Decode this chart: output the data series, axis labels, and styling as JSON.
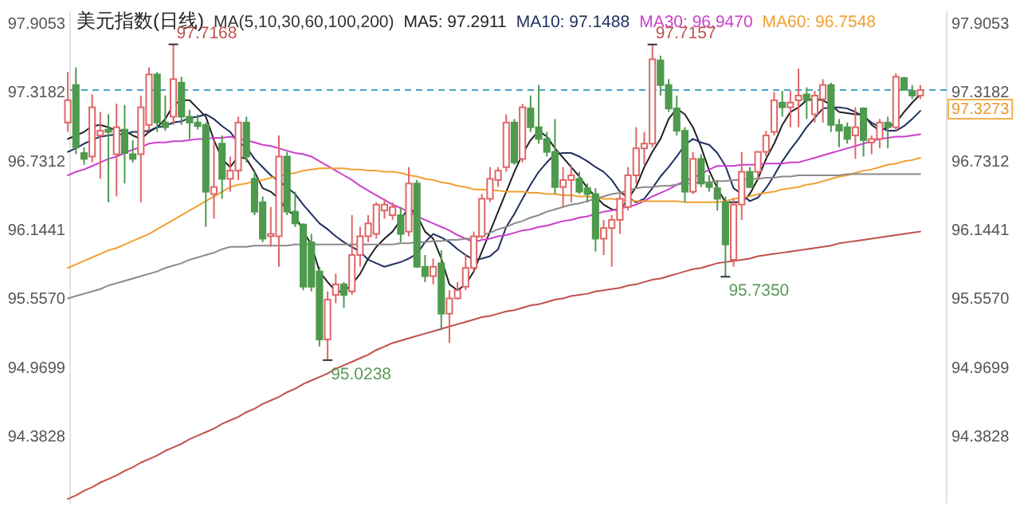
{
  "chart_data": {
    "type": "candlestick",
    "title": "美元指数(日线)",
    "annotations": [
      "MA(5,10,30,60,100,200)",
      "97.7168",
      "95.0238",
      "97.7157",
      "95.7350"
    ],
    "categories": [
      null,
      null,
      null,
      null,
      null,
      null,
      null,
      null,
      null,
      null,
      null,
      null,
      null,
      null,
      null,
      null,
      null,
      null,
      null,
      null,
      null,
      null,
      null,
      null,
      null,
      null,
      null,
      null,
      null,
      null,
      null,
      null,
      null,
      null,
      null,
      null,
      null,
      null,
      null,
      null,
      null,
      null,
      null,
      null,
      null,
      null,
      null,
      null,
      null,
      null,
      null,
      null,
      null,
      null,
      null,
      null,
      null,
      null,
      null,
      null,
      null,
      null,
      null,
      null,
      null,
      null,
      null,
      null,
      null,
      null,
      null,
      null,
      null,
      null,
      null,
      null,
      null,
      null,
      null,
      null,
      null,
      null,
      null,
      null,
      null,
      null,
      null,
      null,
      null,
      null,
      null,
      null,
      null,
      null,
      null,
      null,
      null,
      null,
      null,
      null,
      null,
      null,
      null,
      null,
      null,
      null
    ],
    "ohlc": [
      [
        97.05,
        97.48,
        96.97,
        97.24
      ],
      [
        97.37,
        97.52,
        96.78,
        96.84
      ],
      [
        96.79,
        96.84,
        96.69,
        96.74
      ],
      [
        96.76,
        97.29,
        96.71,
        97.18
      ],
      [
        96.94,
        97.14,
        96.57,
        96.98
      ],
      [
        96.99,
        97.12,
        96.37,
        96.97
      ],
      [
        96.78,
        97.21,
        96.42,
        97.01
      ],
      [
        96.99,
        97.2,
        96.53,
        96.79
      ],
      [
        96.78,
        96.9,
        96.71,
        96.74
      ],
      [
        96.78,
        97.28,
        96.37,
        97.18
      ],
      [
        97.03,
        97.52,
        96.98,
        97.46
      ],
      [
        97.46,
        97.48,
        96.97,
        97.05
      ],
      [
        97.05,
        97.28,
        96.98,
        97.01
      ],
      [
        97.1,
        97.7168,
        97.03,
        97.42
      ],
      [
        97.39,
        97.44,
        97.03,
        97.1
      ],
      [
        97.1,
        97.16,
        96.91,
        97.05
      ],
      [
        97.05,
        97.12,
        96.99,
        97.02
      ],
      [
        97.03,
        97.05,
        96.16,
        96.46
      ],
      [
        96.44,
        96.9,
        96.23,
        96.5
      ],
      [
        96.87,
        96.94,
        96.4,
        96.57
      ],
      [
        96.57,
        96.76,
        96.46,
        96.64
      ],
      [
        96.64,
        97.1,
        96.56,
        97.05
      ],
      [
        97.05,
        97.1,
        96.71,
        96.76
      ],
      [
        96.57,
        96.63,
        96.26,
        96.29
      ],
      [
        96.37,
        96.42,
        96.03,
        96.06
      ],
      [
        96.08,
        96.33,
        95.99,
        96.1
      ],
      [
        96.08,
        96.94,
        95.82,
        96.76
      ],
      [
        96.76,
        96.8,
        96.26,
        96.29
      ],
      [
        96.29,
        96.46,
        96.16,
        96.19
      ],
      [
        96.18,
        96.19,
        95.62,
        95.65
      ],
      [
        96.03,
        96.1,
        95.61,
        95.65
      ],
      [
        95.78,
        95.82,
        95.14,
        95.2
      ],
      [
        95.2,
        95.61,
        95.0238,
        95.54
      ],
      [
        95.58,
        95.76,
        95.51,
        95.67
      ],
      [
        95.67,
        95.69,
        95.47,
        95.58
      ],
      [
        95.61,
        96.26,
        95.58,
        95.92
      ],
      [
        95.92,
        96.16,
        95.82,
        96.08
      ],
      [
        96.08,
        96.26,
        96.03,
        96.19
      ],
      [
        96.1,
        96.37,
        96.06,
        96.35
      ],
      [
        96.3,
        96.4,
        96.23,
        96.35
      ],
      [
        96.26,
        96.37,
        96.22,
        96.33
      ],
      [
        96.26,
        96.33,
        96.03,
        96.1
      ],
      [
        96.12,
        96.67,
        96.08,
        96.53
      ],
      [
        96.53,
        96.56,
        95.81,
        95.82
      ],
      [
        95.82,
        95.92,
        95.69,
        95.74
      ],
      [
        95.74,
        95.89,
        95.67,
        95.82
      ],
      [
        95.85,
        95.96,
        95.28,
        95.42
      ],
      [
        95.42,
        95.62,
        95.17,
        95.55
      ],
      [
        95.55,
        95.69,
        95.54,
        95.62
      ],
      [
        95.65,
        95.92,
        95.62,
        95.81
      ],
      [
        95.81,
        96.12,
        95.78,
        96.08
      ],
      [
        96.08,
        96.44,
        96.06,
        96.4
      ],
      [
        96.4,
        96.67,
        96.37,
        96.57
      ],
      [
        96.56,
        96.67,
        96.5,
        96.64
      ],
      [
        96.67,
        97.12,
        96.63,
        97.05
      ],
      [
        97.05,
        97.08,
        96.69,
        96.71
      ],
      [
        96.74,
        97.21,
        96.71,
        97.18
      ],
      [
        97.17,
        97.28,
        96.97,
        97.01
      ],
      [
        97.01,
        97.37,
        96.87,
        96.91
      ],
      [
        96.91,
        96.97,
        96.76,
        96.8
      ],
      [
        96.8,
        97.08,
        96.44,
        96.5
      ],
      [
        96.5,
        96.67,
        96.33,
        96.56
      ],
      [
        96.56,
        96.69,
        96.37,
        96.6
      ],
      [
        96.57,
        96.63,
        96.44,
        96.46
      ],
      [
        96.49,
        96.53,
        96.37,
        96.44
      ],
      [
        96.44,
        96.49,
        95.95,
        96.06
      ],
      [
        96.06,
        96.22,
        95.92,
        96.15
      ],
      [
        96.15,
        96.26,
        95.82,
        96.22
      ],
      [
        96.22,
        96.46,
        96.1,
        96.4
      ],
      [
        96.33,
        96.67,
        96.3,
        96.6
      ],
      [
        96.6,
        97.01,
        96.53,
        96.83
      ],
      [
        96.83,
        96.97,
        96.69,
        96.87
      ],
      [
        96.87,
        97.7157,
        96.84,
        97.59
      ],
      [
        97.58,
        97.62,
        97.28,
        97.37
      ],
      [
        97.37,
        97.42,
        97.14,
        97.17
      ],
      [
        97.17,
        97.28,
        96.94,
        96.98
      ],
      [
        96.98,
        97.01,
        96.37,
        96.46
      ],
      [
        96.46,
        96.8,
        96.44,
        96.74
      ],
      [
        96.74,
        96.78,
        96.5,
        96.53
      ],
      [
        96.53,
        96.6,
        96.46,
        96.5
      ],
      [
        96.49,
        96.56,
        96.3,
        96.4
      ],
      [
        96.37,
        96.42,
        95.735,
        96.01
      ],
      [
        95.88,
        96.4,
        95.82,
        96.35
      ],
      [
        96.35,
        96.8,
        96.22,
        96.63
      ],
      [
        96.63,
        96.67,
        96.49,
        96.5
      ],
      [
        96.63,
        96.8,
        96.56,
        96.8
      ],
      [
        96.8,
        96.98,
        96.76,
        96.94
      ],
      [
        96.97,
        97.31,
        96.94,
        97.24
      ],
      [
        97.22,
        97.32,
        97.1,
        97.18
      ],
      [
        97.18,
        97.32,
        97.01,
        97.22
      ],
      [
        97.24,
        97.51,
        97.01,
        97.28
      ],
      [
        97.29,
        97.35,
        97.08,
        97.24
      ],
      [
        97.12,
        97.32,
        97.05,
        97.28
      ],
      [
        97.25,
        97.42,
        97.05,
        97.37
      ],
      [
        97.37,
        97.39,
        96.97,
        97.03
      ],
      [
        97.03,
        97.08,
        96.84,
        96.98
      ],
      [
        97.01,
        97.05,
        96.87,
        96.91
      ],
      [
        96.94,
        97.18,
        96.74,
        97.01
      ],
      [
        97.17,
        97.18,
        96.76,
        96.9
      ],
      [
        96.88,
        96.94,
        96.78,
        96.91
      ],
      [
        96.91,
        97.08,
        96.83,
        97.05
      ],
      [
        97.05,
        97.1,
        96.83,
        97.01
      ],
      [
        97.01,
        97.47,
        96.98,
        97.44
      ],
      [
        97.43,
        97.44,
        97.32,
        97.33
      ],
      [
        97.32,
        97.37,
        97.25,
        97.28
      ],
      [
        97.28,
        97.37,
        97.25,
        97.3273
      ]
    ],
    "colors": [
      "#e06666",
      "#4e9a4e",
      "#4e9a4e",
      "#e06666",
      "#e06666",
      "#4e9a4e",
      "#e06666",
      "#4e9a4e",
      "#4e9a4e",
      "#e06666",
      "#e06666",
      "#4e9a4e",
      "#4e9a4e",
      "#e06666",
      "#4e9a4e",
      "#4e9a4e",
      "#4e9a4e",
      "#4e9a4e",
      "#e06666",
      "#4e9a4e",
      "#e06666",
      "#e06666",
      "#4e9a4e",
      "#4e9a4e",
      "#4e9a4e",
      "#e06666",
      "#e06666",
      "#4e9a4e",
      "#4e9a4e",
      "#4e9a4e",
      "#4e9a4e",
      "#4e9a4e",
      "#e06666",
      "#e06666",
      "#4e9a4e",
      "#e06666",
      "#e06666",
      "#e06666",
      "#e06666",
      "#e06666",
      "#e06666",
      "#4e9a4e",
      "#e06666",
      "#4e9a4e",
      "#4e9a4e",
      "#e06666",
      "#4e9a4e",
      "#e06666",
      "#e06666",
      "#e06666",
      "#e06666",
      "#e06666",
      "#e06666",
      "#e06666",
      "#e06666",
      "#4e9a4e",
      "#e06666",
      "#4e9a4e",
      "#4e9a4e",
      "#4e9a4e",
      "#4e9a4e",
      "#e06666",
      "#e06666",
      "#4e9a4e",
      "#4e9a4e",
      "#4e9a4e",
      "#e06666",
      "#e06666",
      "#e06666",
      "#e06666",
      "#e06666",
      "#e06666",
      "#e06666",
      "#4e9a4e",
      "#4e9a4e",
      "#4e9a4e",
      "#4e9a4e",
      "#e06666",
      "#4e9a4e",
      "#4e9a4e",
      "#4e9a4e",
      "#4e9a4e",
      "#e06666",
      "#e06666",
      "#4e9a4e",
      "#e06666",
      "#e06666",
      "#e06666",
      "#4e9a4e",
      "#e06666",
      "#e06666",
      "#4e9a4e",
      "#e06666",
      "#e06666",
      "#4e9a4e",
      "#4e9a4e",
      "#4e9a4e",
      "#e06666",
      "#4e9a4e",
      "#e06666",
      "#e06666",
      "#4e9a4e",
      "#e06666",
      "#4e9a4e",
      "#4e9a4e",
      "#e06666"
    ],
    "series": [
      {
        "type": "line",
        "name": "MA5: 97.2911",
        "color": "#222222",
        "values": [
          96.91,
          96.94,
          96.97,
          97.02,
          97.03,
          97.01,
          96.98,
          96.98,
          96.94,
          96.91,
          96.97,
          97.01,
          97.08,
          97.2,
          97.24,
          97.24,
          97.17,
          97.1,
          96.9,
          96.74,
          96.67,
          96.76,
          96.74,
          96.63,
          96.49,
          96.46,
          96.4,
          96.3,
          96.26,
          96.12,
          96.01,
          95.78,
          95.69,
          95.61,
          95.61,
          95.67,
          95.76,
          95.89,
          95.99,
          96.06,
          96.12,
          96.22,
          96.33,
          96.26,
          96.12,
          96.06,
          95.89,
          95.67,
          95.62,
          95.67,
          95.78,
          95.95,
          96.12,
          96.29,
          96.46,
          96.63,
          96.78,
          96.9,
          96.98,
          96.93,
          96.83,
          96.75,
          96.67,
          96.59,
          96.49,
          96.42,
          96.35,
          96.31,
          96.3,
          96.4,
          96.5,
          96.67,
          96.8,
          96.91,
          97.08,
          97.17,
          97.12,
          97.01,
          96.84,
          96.64,
          96.49,
          96.37,
          96.37,
          96.37,
          96.44,
          96.57,
          96.74,
          96.87,
          97.03,
          97.14,
          97.18,
          97.24,
          97.25,
          97.24,
          97.2,
          97.14,
          97.13,
          97.12,
          97.12,
          97.03,
          96.98,
          97.01,
          97.05,
          97.14,
          97.22,
          97.29
        ]
      },
      {
        "type": "line",
        "name": "MA10: 97.1488",
        "color": "#1f3060",
        "values": [
          96.8,
          96.83,
          96.87,
          96.9,
          96.93,
          96.94,
          96.95,
          96.95,
          96.97,
          96.97,
          96.98,
          97.01,
          97.02,
          97.05,
          97.06,
          97.09,
          97.1,
          97.12,
          97.08,
          97.02,
          96.97,
          96.88,
          96.84,
          96.74,
          96.67,
          96.6,
          96.55,
          96.5,
          96.44,
          96.35,
          96.27,
          96.19,
          96.14,
          96.08,
          96.03,
          95.99,
          95.95,
          95.88,
          95.85,
          95.82,
          95.84,
          95.86,
          95.89,
          95.93,
          96.03,
          96.1,
          96.07,
          96.03,
          95.97,
          95.92,
          95.88,
          95.89,
          95.91,
          95.97,
          96.16,
          96.27,
          96.4,
          96.52,
          96.63,
          96.71,
          96.78,
          96.79,
          96.79,
          96.76,
          96.72,
          96.67,
          96.63,
          96.56,
          96.46,
          96.41,
          96.37,
          96.4,
          96.49,
          96.59,
          96.67,
          96.76,
          96.86,
          96.91,
          96.88,
          96.86,
          96.79,
          96.68,
          96.49,
          96.44,
          96.38,
          96.41,
          96.49,
          96.6,
          96.72,
          96.82,
          96.91,
          97.01,
          97.09,
          97.17,
          97.18,
          97.18,
          97.17,
          97.14,
          97.1,
          97.05,
          97.01,
          96.98,
          96.98,
          97.02,
          97.08,
          97.15
        ]
      },
      {
        "type": "line",
        "name": "MA30: 96.9470",
        "color": "#cc3fcc",
        "values": [
          96.6,
          96.63,
          96.65,
          96.68,
          96.71,
          96.74,
          96.76,
          96.79,
          96.82,
          96.84,
          96.87,
          96.88,
          96.88,
          96.89,
          96.89,
          96.9,
          96.91,
          96.91,
          96.92,
          96.92,
          96.93,
          96.91,
          96.9,
          96.88,
          96.86,
          96.85,
          96.83,
          96.81,
          96.79,
          96.78,
          96.76,
          96.72,
          96.68,
          96.64,
          96.6,
          96.56,
          96.51,
          96.47,
          96.43,
          96.39,
          96.35,
          96.32,
          96.29,
          96.25,
          96.22,
          96.19,
          96.16,
          96.13,
          96.09,
          96.06,
          96.03,
          96.05,
          96.06,
          96.08,
          96.09,
          96.11,
          96.13,
          96.14,
          96.16,
          96.17,
          96.19,
          96.21,
          96.22,
          96.24,
          96.25,
          96.27,
          96.29,
          96.3,
          96.32,
          96.33,
          96.35,
          96.38,
          96.42,
          96.45,
          96.48,
          96.52,
          96.55,
          96.58,
          96.61,
          96.65,
          96.68,
          96.68,
          96.68,
          96.69,
          96.69,
          96.69,
          96.7,
          96.7,
          96.7,
          96.71,
          96.71,
          96.73,
          96.75,
          96.77,
          96.79,
          96.81,
          96.83,
          96.85,
          96.87,
          96.89,
          96.91,
          96.92,
          96.93,
          96.93,
          96.94,
          96.95
        ]
      },
      {
        "type": "line",
        "name": "MA60: 96.7548",
        "color": "#f0a030",
        "values": [
          95.81,
          95.84,
          95.87,
          95.9,
          95.93,
          95.96,
          95.98,
          96.01,
          96.04,
          96.07,
          96.1,
          96.14,
          96.18,
          96.22,
          96.26,
          96.3,
          96.34,
          96.38,
          96.42,
          96.46,
          96.5,
          96.52,
          96.53,
          96.55,
          96.56,
          96.58,
          96.59,
          96.61,
          96.62,
          96.64,
          96.65,
          96.66,
          96.66,
          96.66,
          96.66,
          96.65,
          96.65,
          96.64,
          96.64,
          96.63,
          96.63,
          96.62,
          96.6,
          96.59,
          96.57,
          96.56,
          96.54,
          96.53,
          96.51,
          96.5,
          96.48,
          96.48,
          96.47,
          96.47,
          96.46,
          96.46,
          96.46,
          96.45,
          96.45,
          96.44,
          96.44,
          96.43,
          96.43,
          96.42,
          96.42,
          96.41,
          96.4,
          96.4,
          96.39,
          96.39,
          96.38,
          96.38,
          96.38,
          96.38,
          96.38,
          96.38,
          96.37,
          96.37,
          96.37,
          96.37,
          96.37,
          96.38,
          96.4,
          96.41,
          96.42,
          96.44,
          96.45,
          96.46,
          96.48,
          96.49,
          96.5,
          96.52,
          96.53,
          96.55,
          96.57,
          96.59,
          96.6,
          96.62,
          96.64,
          96.65,
          96.67,
          96.69,
          96.7,
          96.72,
          96.73,
          96.75
        ]
      },
      {
        "type": "line",
        "color": "#8a8a8a",
        "values": [
          95.55,
          95.57,
          95.59,
          95.61,
          95.63,
          95.66,
          95.68,
          95.7,
          95.72,
          95.74,
          95.76,
          95.78,
          95.81,
          95.83,
          95.85,
          95.88,
          95.9,
          95.92,
          95.94,
          95.97,
          95.99,
          95.99,
          95.99,
          96.0,
          96.0,
          96.0,
          96.0,
          96.0,
          96.01,
          96.01,
          96.01,
          96.01,
          96.01,
          96.01,
          96.01,
          96.01,
          96.01,
          96.01,
          96.01,
          96.01,
          96.01,
          96.02,
          96.02,
          96.03,
          96.03,
          96.04,
          96.04,
          96.05,
          96.05,
          96.06,
          96.06,
          96.09,
          96.11,
          96.14,
          96.16,
          96.19,
          96.21,
          96.24,
          96.26,
          96.29,
          96.31,
          96.33,
          96.35,
          96.36,
          96.38,
          96.4,
          96.42,
          96.44,
          96.45,
          96.47,
          96.49,
          96.5,
          96.5,
          96.51,
          96.51,
          96.52,
          96.53,
          96.53,
          96.54,
          96.54,
          96.55,
          96.55,
          96.56,
          96.56,
          96.57,
          96.57,
          96.58,
          96.58,
          96.59,
          96.59,
          96.6,
          96.6,
          96.6,
          96.6,
          96.6,
          96.6,
          96.61,
          96.61,
          96.61,
          96.61,
          96.61,
          96.61,
          96.61,
          96.61,
          96.61,
          96.61
        ]
      },
      {
        "type": "line",
        "color": "#c0504d",
        "values": [
          93.84,
          93.87,
          93.91,
          93.94,
          93.98,
          94.01,
          94.04,
          94.08,
          94.11,
          94.15,
          94.18,
          94.21,
          94.25,
          94.28,
          94.31,
          94.35,
          94.38,
          94.41,
          94.44,
          94.48,
          94.51,
          94.54,
          94.58,
          94.61,
          94.65,
          94.68,
          94.71,
          94.75,
          94.78,
          94.82,
          94.85,
          94.88,
          94.91,
          94.95,
          94.98,
          95.01,
          95.04,
          95.07,
          95.11,
          95.14,
          95.17,
          95.19,
          95.21,
          95.23,
          95.25,
          95.27,
          95.29,
          95.31,
          95.33,
          95.35,
          95.37,
          95.39,
          95.4,
          95.42,
          95.44,
          95.45,
          95.47,
          95.49,
          95.5,
          95.52,
          95.54,
          95.55,
          95.57,
          95.58,
          95.59,
          95.61,
          95.62,
          95.63,
          95.64,
          95.66,
          95.67,
          95.69,
          95.71,
          95.72,
          95.74,
          95.76,
          95.78,
          95.8,
          95.81,
          95.83,
          95.85,
          95.86,
          95.87,
          95.88,
          95.89,
          95.91,
          95.92,
          95.93,
          95.94,
          95.95,
          95.96,
          95.97,
          95.98,
          95.99,
          96.0,
          96.02,
          96.03,
          96.04,
          96.05,
          96.06,
          96.07,
          96.08,
          96.09,
          96.1,
          96.11,
          96.12
        ]
      }
    ],
    "ylim": [
      93.8,
      98.0
    ],
    "yticks": [
      94.3828,
      94.9699,
      {
        "value": 95.557,
        "label": "95.5570"
      },
      96.1441,
      96.7312,
      97.3182,
      97.9053
    ],
    "y2lim": [
      93.8,
      98.0
    ],
    "y2ticks": [
      94.3828,
      94.9699,
      {
        "value": 95.557,
        "label": "95.5570"
      },
      96.1441,
      96.7312,
      97.3182,
      97.9053
    ],
    "ref_lines": [
      {
        "axis": "y",
        "value": 97.3273,
        "label": "97.3273",
        "color": "#4aa3c8",
        "line_style": "dashed"
      }
    ],
    "tick_labels": "y",
    "legend": "top"
  }
}
